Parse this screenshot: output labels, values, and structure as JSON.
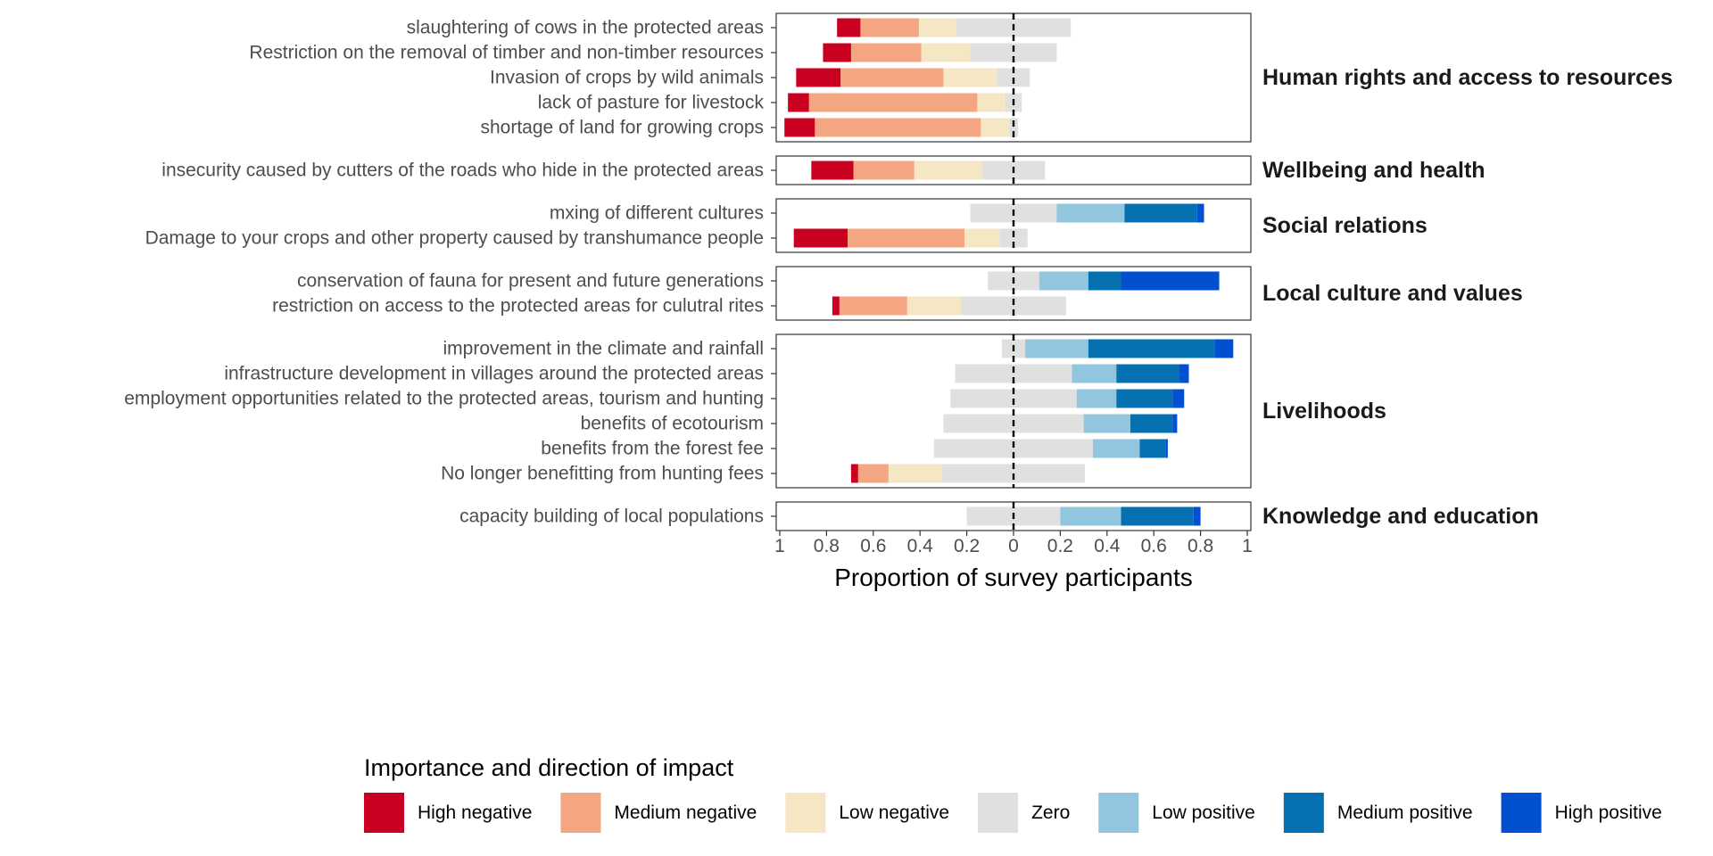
{
  "chart_data": {
    "type": "bar",
    "orientation": "horizontal",
    "stacking": "diverging",
    "title": "",
    "xlabel": "Proportion of survey participants",
    "ylabel": "",
    "xlim": [
      -1,
      1
    ],
    "xticks": [
      -1,
      -0.8,
      -0.6,
      -0.4,
      -0.2,
      0,
      0.2,
      0.4,
      0.6,
      0.8,
      1
    ],
    "xtick_labels": [
      "1",
      "0.8",
      "0.6",
      "0.4",
      "0.2",
      "0",
      "0.2",
      "0.4",
      "0.6",
      "0.8",
      "1"
    ],
    "grid": false,
    "legend": {
      "title": "Importance and direction of impact",
      "placement": "bottom",
      "entries": [
        "High negative",
        "Medium negative",
        "Low negative",
        "Zero",
        "Low positive",
        "Medium positive",
        "High positive"
      ]
    },
    "colors": {
      "High negative": "#ca0020",
      "Medium negative": "#f4a582",
      "Low negative": "#f5e6c4",
      "Zero": "#e0e0e0",
      "Low positive": "#92c5de",
      "Medium positive": "#0571b0",
      "High positive": "#0050d0"
    },
    "facets": [
      {
        "name": "Human rights and access to resources",
        "items": [
          {
            "label": "slaughtering of cows in the protected areas",
            "values": {
              "High negative": 0.1,
              "Medium negative": 0.25,
              "Low negative": 0.16,
              "Zero": 0.49,
              "Low positive": 0,
              "Medium positive": 0,
              "High positive": 0
            }
          },
          {
            "label": "Restriction on the removal of timber and non-timber resources",
            "values": {
              "High negative": 0.12,
              "Medium negative": 0.3,
              "Low negative": 0.21,
              "Zero": 0.37,
              "Low positive": 0,
              "Medium positive": 0,
              "High positive": 0
            }
          },
          {
            "label": "Invasion of crops by wild animals",
            "values": {
              "High negative": 0.19,
              "Medium negative": 0.44,
              "Low negative": 0.23,
              "Zero": 0.14,
              "Low positive": 0,
              "Medium positive": 0,
              "High positive": 0
            }
          },
          {
            "label": "lack of pasture for livestock",
            "values": {
              "High negative": 0.09,
              "Medium negative": 0.72,
              "Low negative": 0.12,
              "Zero": 0.07,
              "Low positive": 0,
              "Medium positive": 0,
              "High positive": 0
            }
          },
          {
            "label": "shortage of land for growing crops",
            "values": {
              "High negative": 0.13,
              "Medium negative": 0.71,
              "Low negative": 0.12,
              "Zero": 0.04,
              "Low positive": 0,
              "Medium positive": 0,
              "High positive": 0
            }
          }
        ]
      },
      {
        "name": "Wellbeing and health",
        "items": [
          {
            "label": "insecurity caused by cutters of the roads who hide in the protected areas",
            "values": {
              "High negative": 0.18,
              "Medium negative": 0.26,
              "Low negative": 0.29,
              "Zero": 0.27,
              "Low positive": 0,
              "Medium positive": 0,
              "High positive": 0
            }
          }
        ]
      },
      {
        "name": "Social relations",
        "items": [
          {
            "label": "mxing of different cultures",
            "values": {
              "High negative": 0,
              "Medium negative": 0,
              "Low negative": 0,
              "Zero": 0.37,
              "Low positive": 0.29,
              "Medium positive": 0.31,
              "High positive": 0.03
            }
          },
          {
            "label": "Damage to your crops and other property caused by transhumance people",
            "values": {
              "High negative": 0.23,
              "Medium negative": 0.5,
              "Low negative": 0.15,
              "Zero": 0.12,
              "Low positive": 0,
              "Medium positive": 0,
              "High positive": 0
            }
          }
        ]
      },
      {
        "name": "Local culture and values",
        "items": [
          {
            "label": "conservation of fauna for present and future generations",
            "values": {
              "High negative": 0,
              "Medium negative": 0,
              "Low negative": 0,
              "Zero": 0.22,
              "Low positive": 0.21,
              "Medium positive": 0.14,
              "High positive": 0.42
            }
          },
          {
            "label": "restriction on access to the protected areas for culutral rites",
            "values": {
              "High negative": 0.03,
              "Medium negative": 0.29,
              "Low negative": 0.23,
              "Zero": 0.45,
              "Low positive": 0,
              "Medium positive": 0,
              "High positive": 0
            }
          }
        ]
      },
      {
        "name": "Livelihoods",
        "items": [
          {
            "label": "improvement in the climate and rainfall",
            "values": {
              "High negative": 0,
              "Medium negative": 0,
              "Low negative": 0,
              "Zero": 0.1,
              "Low positive": 0.27,
              "Medium positive": 0.54,
              "High positive": 0.08
            }
          },
          {
            "label": "infrastructure development in villages around the protected areas",
            "values": {
              "High negative": 0,
              "Medium negative": 0,
              "Low negative": 0,
              "Zero": 0.5,
              "Low positive": 0.19,
              "Medium positive": 0.27,
              "High positive": 0.04
            }
          },
          {
            "label": "employment opportunities related to the protected areas, tourism and hunting",
            "values": {
              "High negative": 0,
              "Medium negative": 0,
              "Low negative": 0,
              "Zero": 0.54,
              "Low positive": 0.17,
              "Medium positive": 0.24,
              "High positive": 0.05
            }
          },
          {
            "label": "benefits of ecotourism",
            "values": {
              "High negative": 0,
              "Medium negative": 0,
              "Low negative": 0,
              "Zero": 0.6,
              "Low positive": 0.2,
              "Medium positive": 0.18,
              "High positive": 0.02
            }
          },
          {
            "label": "benefits from the forest fee",
            "values": {
              "High negative": 0,
              "Medium negative": 0,
              "Low negative": 0,
              "Zero": 0.68,
              "Low positive": 0.2,
              "Medium positive": 0.11,
              "High positive": 0.01
            }
          },
          {
            "label": "No longer benefitting from hunting fees",
            "values": {
              "High negative": 0.03,
              "Medium negative": 0.13,
              "Low negative": 0.23,
              "Zero": 0.61,
              "Low positive": 0,
              "Medium positive": 0,
              "High positive": 0
            }
          }
        ]
      },
      {
        "name": "Knowledge and education",
        "items": [
          {
            "label": "capacity building of local populations",
            "values": {
              "High negative": 0,
              "Medium negative": 0,
              "Low negative": 0,
              "Zero": 0.4,
              "Low positive": 0.26,
              "Medium positive": 0.31,
              "High positive": 0.03
            }
          }
        ]
      }
    ]
  }
}
